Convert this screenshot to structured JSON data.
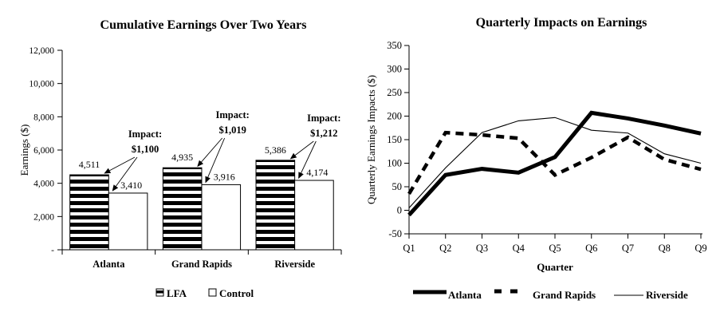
{
  "page": {
    "description": "Two black-and-white report charts side by side",
    "colors": {
      "ink": "#000000",
      "background": "#ffffff"
    }
  },
  "chart_data": [
    {
      "type": "bar",
      "title": "Cumulative Earnings Over Two Years",
      "ylabel": "Earnings ($)",
      "xlabel": "",
      "ylim": [
        0,
        12000
      ],
      "ytick_step": 2000,
      "ytick_labels": [
        "-",
        "2,000",
        "4,000",
        "6,000",
        "8,000",
        "10,000",
        "12,000"
      ],
      "categories": [
        "Atlanta",
        "Grand Rapids",
        "Riverside"
      ],
      "series": [
        {
          "name": "LFA",
          "fill": "striped",
          "values": [
            4511,
            4935,
            5386
          ],
          "value_labels": [
            "4,511",
            "4,935",
            "5,386"
          ]
        },
        {
          "name": "Control",
          "fill": "white",
          "values": [
            3410,
            3916,
            4174
          ],
          "value_labels": [
            "3,410",
            "3,916",
            "4,174"
          ]
        }
      ],
      "annotations": [
        {
          "line1": "Impact:",
          "line2": "$1,100"
        },
        {
          "line1": "Impact:",
          "line2": "$1,019"
        },
        {
          "line1": "Impact:",
          "line2": "$1,212"
        }
      ],
      "legend_position": "bottom",
      "grid": false
    },
    {
      "type": "line",
      "title": "Quarterly Impacts on Earnings",
      "ylabel": "Quarterly Earnings Impacts ($)",
      "xlabel": "Quarter",
      "ylim": [
        -50,
        350
      ],
      "ytick_step": 50,
      "ytick_labels": [
        "-50",
        "0",
        "50",
        "100",
        "150",
        "200",
        "250",
        "300",
        "350"
      ],
      "x": [
        "Q1",
        "Q2",
        "Q3",
        "Q4",
        "Q5",
        "Q6",
        "Q7",
        "Q8",
        "Q9"
      ],
      "series": [
        {
          "name": "Atlanta",
          "style": "thick-solid",
          "values": [
            -10,
            75,
            88,
            80,
            113,
            207,
            195,
            180,
            163
          ]
        },
        {
          "name": "Grand Rapids",
          "style": "thick-dashed",
          "values": [
            35,
            165,
            160,
            153,
            75,
            112,
            155,
            108,
            87
          ]
        },
        {
          "name": "Riverside",
          "style": "thin-solid",
          "values": [
            5,
            90,
            165,
            190,
            197,
            170,
            164,
            120,
            100
          ]
        }
      ],
      "legend_position": "bottom",
      "grid": false
    }
  ]
}
